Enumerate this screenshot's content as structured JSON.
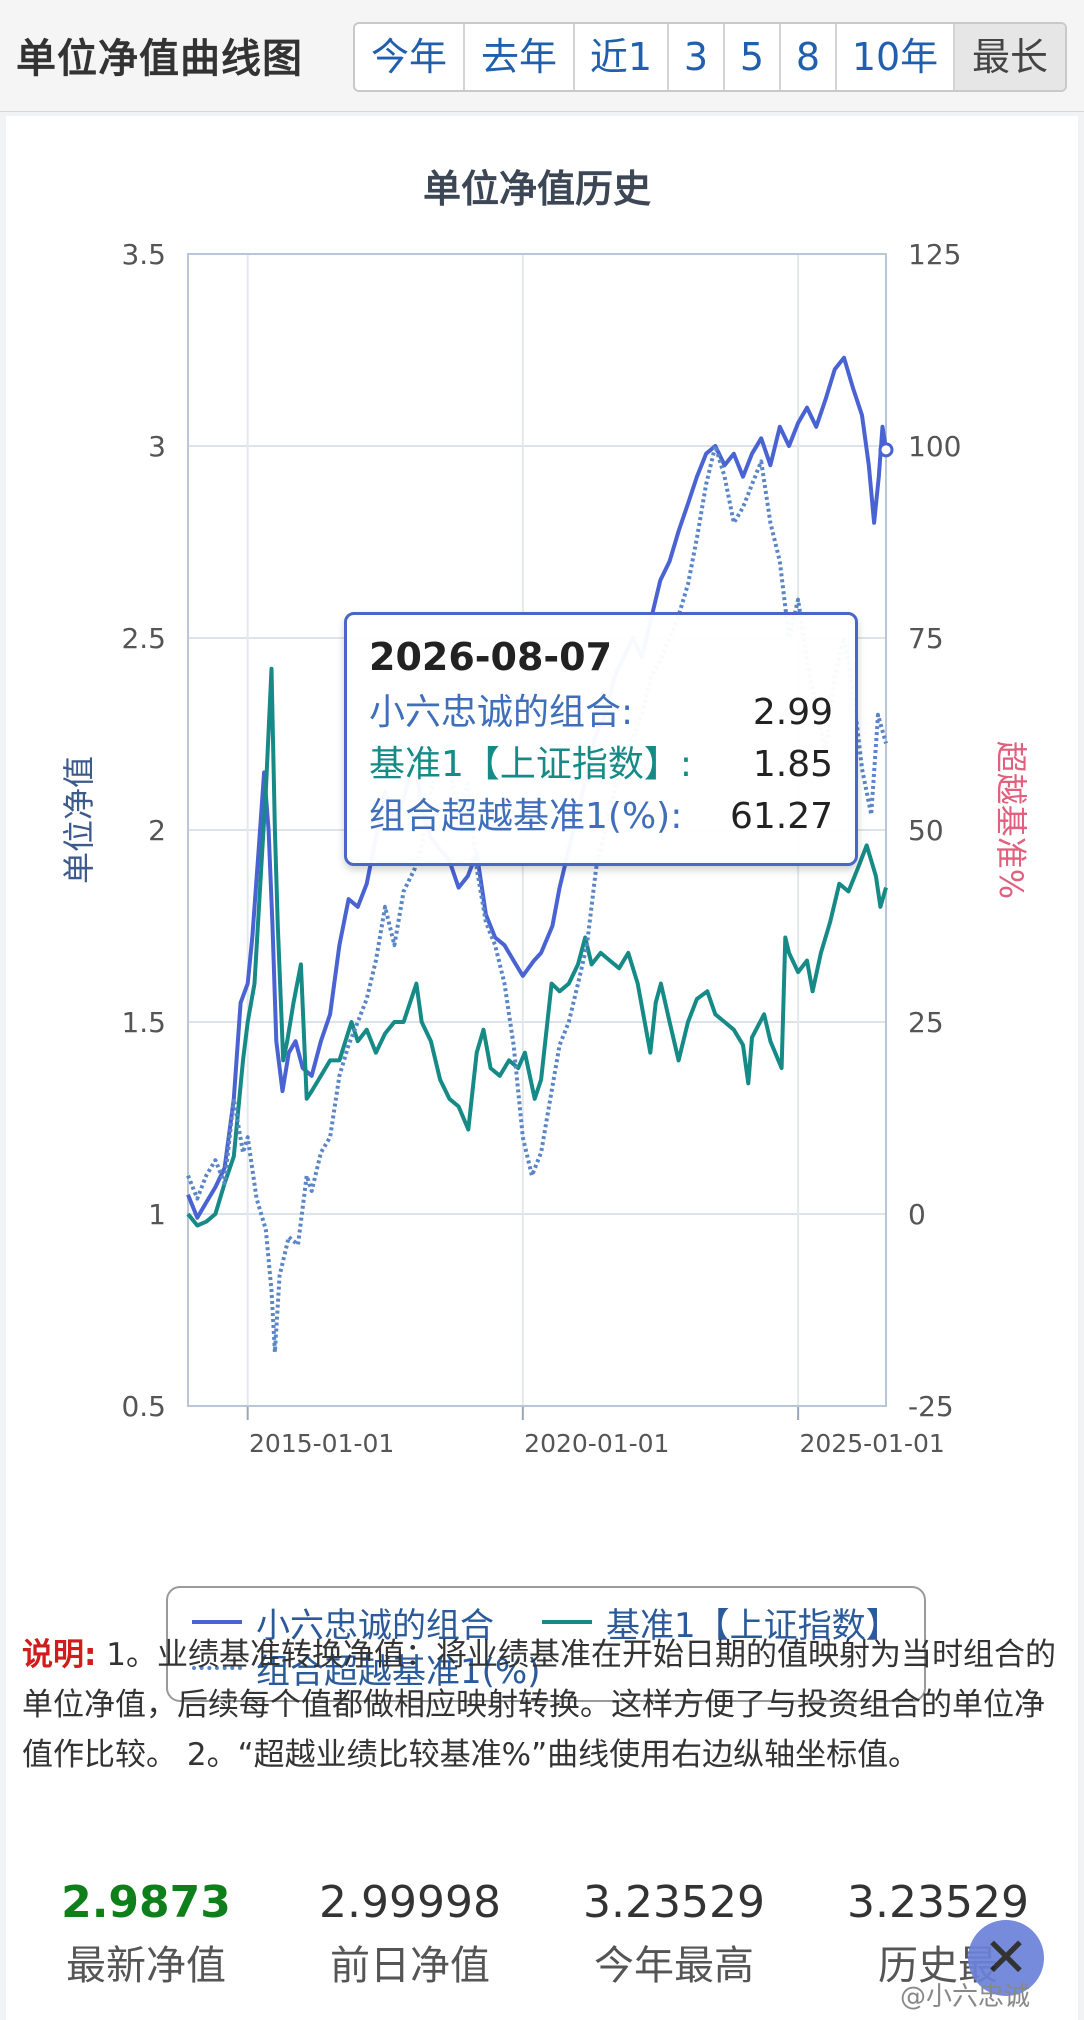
{
  "header": {
    "title": "单位净值曲线图",
    "ranges": [
      {
        "label": "今年",
        "active": false
      },
      {
        "label": "去年",
        "active": false
      },
      {
        "label": "近1",
        "active": false
      },
      {
        "label": "3",
        "active": false
      },
      {
        "label": "5",
        "active": false
      },
      {
        "label": "8",
        "active": false
      },
      {
        "label": "10年",
        "active": false
      },
      {
        "label": "最长",
        "active": true
      }
    ]
  },
  "tooltip": {
    "date": "2026-08-07",
    "rows": [
      {
        "name": "小六忠诚的组合:",
        "value": "2.99"
      },
      {
        "name": "基准1【上证指数】:",
        "value": "1.85"
      },
      {
        "name": "组合超越基准1(%):",
        "value": "61.27"
      }
    ]
  },
  "notes": {
    "label": "说明:",
    "text": " 1。业绩基准转换净值：将业绩基准在开始日期的值映射为当时组合的单位净值，后续每个值都做相应映射转换。这样方便了与投资组合的单位净值作比较。 2。“超越业绩比较基准%”曲线使用右边纵轴坐标值。"
  },
  "stats": [
    {
      "value": "2.9873",
      "label": "最新净值"
    },
    {
      "value": "2.99998",
      "label": "前日净值"
    },
    {
      "value": "3.23529",
      "label": "今年最高"
    },
    {
      "value": "3.23529",
      "label": "历史最"
    }
  ],
  "watermark": "@小六忠诚",
  "colors": {
    "portfolio": "#4a63d2",
    "benchmark": "#168a86",
    "excess": "#5a86c8",
    "tooltip_border": "#4a66c8",
    "right_axis": "#e0607e",
    "latest_nav": "#0f7f1c"
  },
  "chart_data": {
    "type": "line",
    "title": "单位净值历史",
    "ylabel": "单位净值",
    "y2label": "超越基准%",
    "ylim": [
      0.5,
      3.5
    ],
    "y2lim": [
      -25,
      125
    ],
    "yticks": [
      "0.5",
      "1",
      "1.5",
      "2",
      "2.5",
      "3",
      "3.5"
    ],
    "y2ticks": [
      "-25",
      "0",
      "25",
      "50",
      "75",
      "100",
      "125"
    ],
    "xticks": [
      "2015-01-01",
      "2020-01-01",
      "2025-01-01"
    ],
    "xlim": [
      "2013-12-01",
      "2026-08-07"
    ],
    "grid": true,
    "legend_position": "bottom",
    "series": [
      {
        "name": "小六忠诚的组合",
        "axis": "left",
        "style": "solid",
        "points": [
          [
            "2013-12-01",
            1.05
          ],
          [
            "2014-02-01",
            0.99
          ],
          [
            "2014-04-01",
            1.03
          ],
          [
            "2014-06-01",
            1.07
          ],
          [
            "2014-08-01",
            1.12
          ],
          [
            "2014-10-01",
            1.3
          ],
          [
            "2014-11-15",
            1.55
          ],
          [
            "2015-01-01",
            1.6
          ],
          [
            "2015-02-01",
            1.72
          ],
          [
            "2015-03-15",
            1.95
          ],
          [
            "2015-04-20",
            2.15
          ],
          [
            "2015-05-20",
            2.0
          ],
          [
            "2015-06-15",
            1.75
          ],
          [
            "2015-07-10",
            1.45
          ],
          [
            "2015-08-20",
            1.32
          ],
          [
            "2015-10-01",
            1.42
          ],
          [
            "2015-11-15",
            1.45
          ],
          [
            "2016-01-01",
            1.38
          ],
          [
            "2016-03-01",
            1.36
          ],
          [
            "2016-05-01",
            1.45
          ],
          [
            "2016-07-01",
            1.52
          ],
          [
            "2016-09-01",
            1.7
          ],
          [
            "2016-11-01",
            1.82
          ],
          [
            "2017-01-01",
            1.8
          ],
          [
            "2017-03-01",
            1.86
          ],
          [
            "2017-05-01",
            1.98
          ],
          [
            "2017-07-01",
            2.1
          ],
          [
            "2017-09-01",
            2.02
          ],
          [
            "2017-11-01",
            2.08
          ],
          [
            "2018-01-15",
            2.2
          ],
          [
            "2018-03-01",
            2.05
          ],
          [
            "2018-05-01",
            1.98
          ],
          [
            "2018-07-01",
            1.95
          ],
          [
            "2018-09-01",
            1.92
          ],
          [
            "2018-11-01",
            1.85
          ],
          [
            "2019-01-01",
            1.88
          ],
          [
            "2019-03-01",
            1.94
          ],
          [
            "2019-05-01",
            1.78
          ],
          [
            "2019-07-01",
            1.72
          ],
          [
            "2019-09-01",
            1.7
          ],
          [
            "2019-11-01",
            1.66
          ],
          [
            "2020-01-01",
            1.62
          ],
          [
            "2020-03-15",
            1.66
          ],
          [
            "2020-05-01",
            1.68
          ],
          [
            "2020-07-15",
            1.75
          ],
          [
            "2020-09-01",
            1.85
          ],
          [
            "2020-11-01",
            1.95
          ],
          [
            "2021-01-01",
            2.05
          ],
          [
            "2021-03-01",
            2.15
          ],
          [
            "2021-05-01",
            2.25
          ],
          [
            "2021-07-01",
            2.3
          ],
          [
            "2021-09-01",
            2.4
          ],
          [
            "2021-11-01",
            2.45
          ],
          [
            "2022-01-01",
            2.5
          ],
          [
            "2022-03-01",
            2.45
          ],
          [
            "2022-05-01",
            2.55
          ],
          [
            "2022-07-01",
            2.65
          ],
          [
            "2022-09-01",
            2.7
          ],
          [
            "2022-11-01",
            2.78
          ],
          [
            "2023-01-01",
            2.85
          ],
          [
            "2023-03-01",
            2.92
          ],
          [
            "2023-05-01",
            2.98
          ],
          [
            "2023-07-01",
            3.0
          ],
          [
            "2023-09-01",
            2.95
          ],
          [
            "2023-11-01",
            2.98
          ],
          [
            "2024-01-01",
            2.92
          ],
          [
            "2024-03-01",
            2.98
          ],
          [
            "2024-05-01",
            3.02
          ],
          [
            "2024-07-01",
            2.95
          ],
          [
            "2024-09-01",
            3.05
          ],
          [
            "2024-11-01",
            3.0
          ],
          [
            "2025-01-01",
            3.06
          ],
          [
            "2025-03-01",
            3.1
          ],
          [
            "2025-05-01",
            3.05
          ],
          [
            "2025-07-01",
            3.12
          ],
          [
            "2025-09-01",
            3.2
          ],
          [
            "2025-11-01",
            3.23
          ],
          [
            "2026-01-01",
            3.15
          ],
          [
            "2026-03-01",
            3.08
          ],
          [
            "2026-04-15",
            2.95
          ],
          [
            "2026-05-20",
            2.8
          ],
          [
            "2026-06-20",
            2.92
          ],
          [
            "2026-07-15",
            3.05
          ],
          [
            "2026-08-07",
            2.99
          ]
        ]
      },
      {
        "name": "基准1【上证指数】",
        "axis": "left",
        "style": "solid",
        "points": [
          [
            "2013-12-01",
            1.0
          ],
          [
            "2014-02-01",
            0.97
          ],
          [
            "2014-04-01",
            0.98
          ],
          [
            "2014-06-01",
            1.0
          ],
          [
            "2014-08-01",
            1.08
          ],
          [
            "2014-10-01",
            1.15
          ],
          [
            "2014-12-01",
            1.4
          ],
          [
            "2015-01-01",
            1.5
          ],
          [
            "2015-02-15",
            1.6
          ],
          [
            "2015-04-01",
            1.9
          ],
          [
            "2015-05-01",
            2.1
          ],
          [
            "2015-06-08",
            2.42
          ],
          [
            "2015-07-01",
            2.0
          ],
          [
            "2015-07-20",
            1.75
          ],
          [
            "2015-08-25",
            1.4
          ],
          [
            "2015-09-20",
            1.45
          ],
          [
            "2015-11-01",
            1.55
          ],
          [
            "2015-12-20",
            1.65
          ],
          [
            "2016-01-28",
            1.3
          ],
          [
            "2016-03-01",
            1.32
          ],
          [
            "2016-05-01",
            1.36
          ],
          [
            "2016-07-01",
            1.4
          ],
          [
            "2016-09-01",
            1.4
          ],
          [
            "2016-11-20",
            1.5
          ],
          [
            "2017-01-01",
            1.45
          ],
          [
            "2017-03-01",
            1.48
          ],
          [
            "2017-05-01",
            1.42
          ],
          [
            "2017-07-01",
            1.47
          ],
          [
            "2017-09-01",
            1.5
          ],
          [
            "2017-11-01",
            1.5
          ],
          [
            "2018-01-25",
            1.6
          ],
          [
            "2018-03-01",
            1.5
          ],
          [
            "2018-05-01",
            1.45
          ],
          [
            "2018-07-01",
            1.35
          ],
          [
            "2018-09-01",
            1.3
          ],
          [
            "2018-11-01",
            1.28
          ],
          [
            "2019-01-04",
            1.22
          ],
          [
            "2019-03-01",
            1.42
          ],
          [
            "2019-04-15",
            1.48
          ],
          [
            "2019-06-01",
            1.38
          ],
          [
            "2019-08-01",
            1.36
          ],
          [
            "2019-10-01",
            1.4
          ],
          [
            "2019-12-01",
            1.38
          ],
          [
            "2020-01-15",
            1.42
          ],
          [
            "2020-03-20",
            1.3
          ],
          [
            "2020-05-01",
            1.35
          ],
          [
            "2020-07-10",
            1.6
          ],
          [
            "2020-09-01",
            1.58
          ],
          [
            "2020-11-01",
            1.6
          ],
          [
            "2021-01-01",
            1.65
          ],
          [
            "2021-02-18",
            1.72
          ],
          [
            "2021-04-01",
            1.65
          ],
          [
            "2021-06-01",
            1.68
          ],
          [
            "2021-08-01",
            1.66
          ],
          [
            "2021-10-01",
            1.64
          ],
          [
            "2021-12-01",
            1.68
          ],
          [
            "2022-02-01",
            1.6
          ],
          [
            "2022-04-26",
            1.42
          ],
          [
            "2022-06-01",
            1.55
          ],
          [
            "2022-07-05",
            1.6
          ],
          [
            "2022-09-01",
            1.5
          ],
          [
            "2022-10-31",
            1.4
          ],
          [
            "2023-01-01",
            1.5
          ],
          [
            "2023-03-01",
            1.56
          ],
          [
            "2023-05-09",
            1.58
          ],
          [
            "2023-07-01",
            1.52
          ],
          [
            "2023-09-01",
            1.5
          ],
          [
            "2023-11-01",
            1.48
          ],
          [
            "2024-01-01",
            1.44
          ],
          [
            "2024-02-05",
            1.34
          ],
          [
            "2024-03-01",
            1.46
          ],
          [
            "2024-05-20",
            1.52
          ],
          [
            "2024-07-01",
            1.45
          ],
          [
            "2024-09-13",
            1.38
          ],
          [
            "2024-10-08",
            1.72
          ],
          [
            "2024-11-01",
            1.68
          ],
          [
            "2025-01-01",
            1.63
          ],
          [
            "2025-03-01",
            1.66
          ],
          [
            "2025-04-07",
            1.58
          ],
          [
            "2025-06-01",
            1.68
          ],
          [
            "2025-08-01",
            1.76
          ],
          [
            "2025-10-01",
            1.86
          ],
          [
            "2025-12-01",
            1.84
          ],
          [
            "2026-02-01",
            1.9
          ],
          [
            "2026-04-01",
            1.96
          ],
          [
            "2026-06-01",
            1.88
          ],
          [
            "2026-07-01",
            1.8
          ],
          [
            "2026-08-07",
            1.85
          ]
        ]
      },
      {
        "name": "组合超越基准1(%)",
        "axis": "right",
        "style": "dotted",
        "points": [
          [
            "2013-12-01",
            5
          ],
          [
            "2014-02-01",
            2
          ],
          [
            "2014-04-01",
            5
          ],
          [
            "2014-06-01",
            7
          ],
          [
            "2014-08-01",
            4
          ],
          [
            "2014-10-01",
            15
          ],
          [
            "2014-12-01",
            8
          ],
          [
            "2015-01-01",
            10
          ],
          [
            "2015-03-01",
            2
          ],
          [
            "2015-05-01",
            -2
          ],
          [
            "2015-06-08",
            -10
          ],
          [
            "2015-07-01",
            -18
          ],
          [
            "2015-08-01",
            -8
          ],
          [
            "2015-10-01",
            -3
          ],
          [
            "2015-12-01",
            -4
          ],
          [
            "2016-01-28",
            5
          ],
          [
            "2016-03-01",
            3
          ],
          [
            "2016-05-01",
            8
          ],
          [
            "2016-07-01",
            10
          ],
          [
            "2016-09-01",
            18
          ],
          [
            "2016-11-01",
            22
          ],
          [
            "2017-01-01",
            25
          ],
          [
            "2017-03-01",
            28
          ],
          [
            "2017-05-01",
            33
          ],
          [
            "2017-07-01",
            40
          ],
          [
            "2017-09-01",
            35
          ],
          [
            "2017-11-01",
            42
          ],
          [
            "2018-01-15",
            45
          ],
          [
            "2018-03-01",
            48
          ],
          [
            "2018-05-01",
            55
          ],
          [
            "2018-07-01",
            60
          ],
          [
            "2018-09-01",
            58
          ],
          [
            "2018-11-01",
            52
          ],
          [
            "2019-01-01",
            56
          ],
          [
            "2019-03-01",
            45
          ],
          [
            "2019-05-01",
            38
          ],
          [
            "2019-07-01",
            35
          ],
          [
            "2019-09-01",
            30
          ],
          [
            "2019-11-01",
            22
          ],
          [
            "2020-01-01",
            10
          ],
          [
            "2020-03-01",
            5
          ],
          [
            "2020-05-01",
            8
          ],
          [
            "2020-07-01",
            15
          ],
          [
            "2020-09-01",
            22
          ],
          [
            "2020-11-01",
            25
          ],
          [
            "2021-01-01",
            30
          ],
          [
            "2021-03-01",
            35
          ],
          [
            "2021-05-01",
            45
          ],
          [
            "2021-07-01",
            50
          ],
          [
            "2021-09-01",
            55
          ],
          [
            "2021-11-01",
            60
          ],
          [
            "2022-01-01",
            62
          ],
          [
            "2022-03-01",
            65
          ],
          [
            "2022-05-01",
            70
          ],
          [
            "2022-07-01",
            72
          ],
          [
            "2022-09-01",
            75
          ],
          [
            "2022-11-01",
            78
          ],
          [
            "2023-01-01",
            82
          ],
          [
            "2023-03-01",
            88
          ],
          [
            "2023-05-01",
            95
          ],
          [
            "2023-07-01",
            100
          ],
          [
            "2023-09-01",
            96
          ],
          [
            "2023-11-01",
            90
          ],
          [
            "2024-01-01",
            92
          ],
          [
            "2024-03-01",
            95
          ],
          [
            "2024-05-01",
            98
          ],
          [
            "2024-07-01",
            90
          ],
          [
            "2024-09-01",
            85
          ],
          [
            "2024-11-01",
            75
          ],
          [
            "2025-01-01",
            80
          ],
          [
            "2025-03-01",
            72
          ],
          [
            "2025-05-01",
            66
          ],
          [
            "2025-07-01",
            60
          ],
          [
            "2025-09-01",
            70
          ],
          [
            "2025-11-01",
            75
          ],
          [
            "2026-01-01",
            68
          ],
          [
            "2026-03-01",
            58
          ],
          [
            "2026-05-01",
            52
          ],
          [
            "2026-06-15",
            65
          ],
          [
            "2026-08-07",
            61.27
          ]
        ]
      }
    ]
  }
}
